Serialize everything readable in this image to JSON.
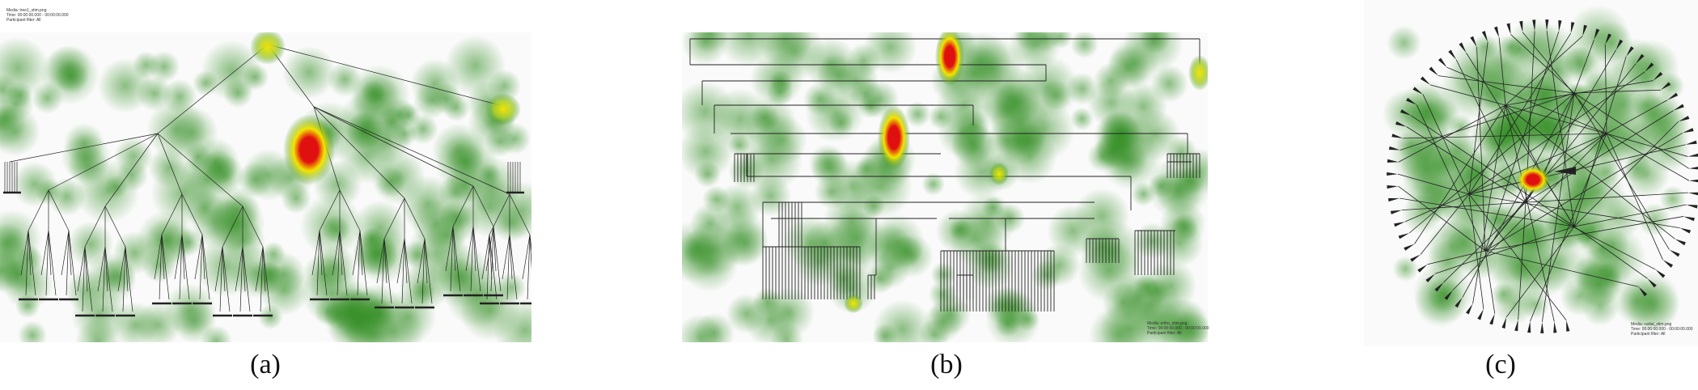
{
  "figure": {
    "panels": [
      {
        "id": "a",
        "caption": "(a)",
        "legend": [
          "Media: tree1_stim.png",
          "Time: 00:00:00.000 - 00:00:00.000",
          "Participant filter: All"
        ]
      },
      {
        "id": "b",
        "caption": "(b)",
        "legend": [
          "Media: ortho_stim.png",
          "Time: 00:00:00.000 - 00:00:00.000",
          "Participant filter: All"
        ]
      },
      {
        "id": "c",
        "caption": "(c)",
        "legend": [
          "Media: radial_stim.png",
          "Time: 00:00:00.000 - 00:00:00.000",
          "Participant filter: All"
        ]
      }
    ],
    "colors": {
      "heat_low": "#2e8b1e",
      "heat_mid": "#f2e600",
      "heat_high": "#e01010",
      "tree_line": "#222222"
    }
  }
}
